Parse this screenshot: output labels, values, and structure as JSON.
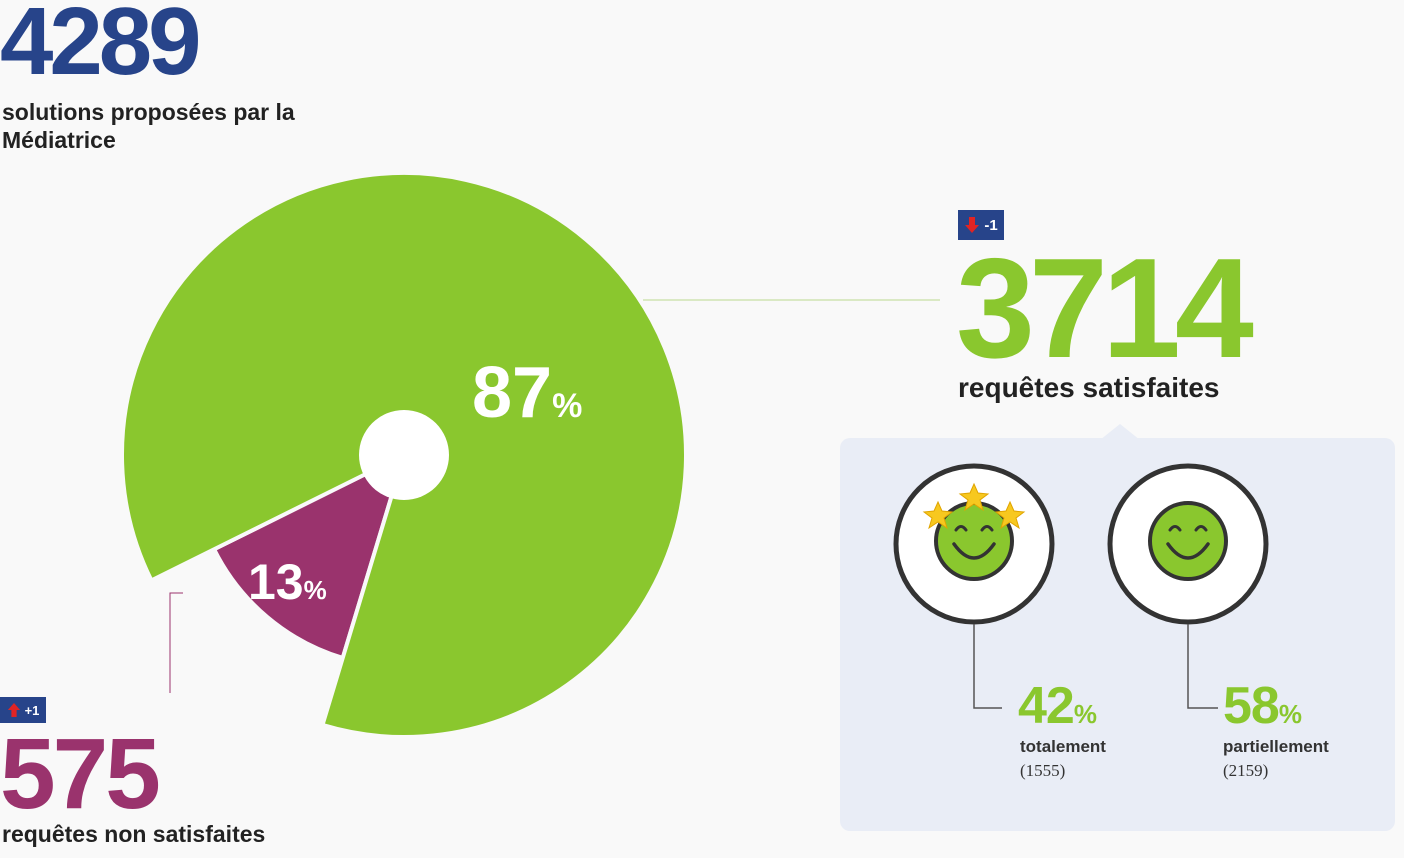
{
  "total": {
    "value": "4289",
    "label": "solutions proposées par la Médiatrice"
  },
  "chart_data": {
    "type": "pie",
    "title": "",
    "slices": [
      {
        "label": "requêtes satisfaites",
        "value": 87,
        "count": 3714,
        "color": "#8ac72e"
      },
      {
        "label": "requêtes non satisfaites",
        "value": 13,
        "count": 575,
        "color": "#9a336d"
      }
    ],
    "breakdown": [
      {
        "label": "totalement",
        "value": 42,
        "count": 1555
      },
      {
        "label": "partiellement",
        "value": 58,
        "count": 2159
      }
    ]
  },
  "satisfied": {
    "pct": "87",
    "pct_sign": "%",
    "value": "3714",
    "label": "requêtes satisfaites",
    "badge": "-1"
  },
  "unsatisfied": {
    "pct": "13",
    "pct_sign": "%",
    "value": "575",
    "label": "requêtes non satisfaites",
    "badge": "+1"
  },
  "breakdown": {
    "total": {
      "pct": "42",
      "pct_sign": "%",
      "label": "totalement",
      "count": "(1555)"
    },
    "partial": {
      "pct": "58",
      "pct_sign": "%",
      "label": "partiellement",
      "count": "(2159)"
    }
  },
  "colors": {
    "green": "#8ac72e",
    "purple": "#9a336d",
    "navy": "#27448a",
    "panel": "#e9edf6",
    "badge_up": "#e02424",
    "badge_down": "#e02424"
  },
  "icons": {
    "very_happy": "smiley-with-stars-icon",
    "happy": "smiley-icon",
    "arrow_down": "arrow-down-icon",
    "arrow_up": "arrow-up-icon"
  }
}
